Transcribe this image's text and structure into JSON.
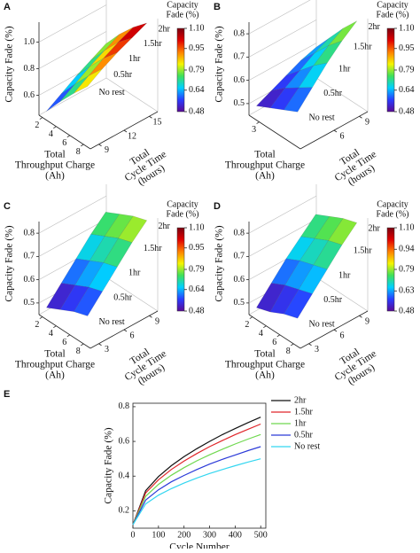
{
  "chart_data": [
    {
      "type": "surface3d",
      "panel": "A",
      "zlabel": "Capacity Fade (%)",
      "xlabel": [
        "Total",
        "Throughput Charge",
        "(Ah)"
      ],
      "ylabel": [
        "Total",
        "Cycle Time",
        "(hours)"
      ],
      "x": [
        2,
        4,
        6,
        8
      ],
      "xlim": [
        1.5,
        9
      ],
      "xticks": [
        2,
        4,
        6,
        8
      ],
      "ylim": [
        8,
        16
      ],
      "yticks": [
        9,
        12,
        15
      ],
      "zlim": [
        0.45,
        1.15
      ],
      "zticks": [
        0.6,
        0.8,
        {
          "value": 1,
          "label": "1.0"
        }
      ],
      "series": [
        {
          "name": "2hr",
          "values": [
            0.74,
            0.88,
            1.0,
            1.1
          ]
        },
        {
          "name": "1.5hr",
          "values": [
            0.68,
            0.82,
            0.95,
            1.05
          ]
        },
        {
          "name": "1hr",
          "values": [
            0.62,
            0.76,
            0.89,
            1.0
          ]
        },
        {
          "name": "0.5hr",
          "values": [
            0.55,
            0.69,
            0.82,
            0.94
          ]
        },
        {
          "name": "No rest",
          "values": [
            0.48,
            0.62,
            0.75,
            0.87
          ]
        }
      ],
      "colorbar_title": [
        "Capacity",
        "Fade (%)"
      ],
      "clim": [
        0.48,
        1.1
      ],
      "cticks": [
        0.48,
        0.64,
        0.79,
        0.95,
        {
          "value": 1.1,
          "label": "1.10"
        }
      ],
      "colormap": [
        "#5a0a94",
        "#2a3cff",
        "#00d0ff",
        "#3fe05a",
        "#f5f500",
        "#ff7f00",
        "#e00000",
        "#7a0010"
      ]
    },
    {
      "type": "surface3d",
      "panel": "B",
      "zlabel": "Capacity Fade (%)",
      "xlabel": [
        "Total",
        "Throughput Charge",
        "(Ah)"
      ],
      "ylabel": [
        "Total",
        "Cycle Time",
        "(hours)"
      ],
      "x": [
        2,
        4,
        6,
        8
      ],
      "xlim": [
        1.5,
        9
      ],
      "xticks": [
        3
      ],
      "ylim": [
        2,
        10
      ],
      "yticks": [
        6,
        9
      ],
      "zlim": [
        0.45,
        0.85
      ],
      "zticks": [
        0.5,
        0.6,
        0.7,
        0.8
      ],
      "series": [
        {
          "name": "2hr",
          "values": [
            0.6,
            0.68,
            0.76,
            0.83
          ]
        },
        {
          "name": "1.5hr",
          "values": [
            0.58,
            0.65,
            0.72,
            0.78
          ]
        },
        {
          "name": "1hr",
          "values": [
            0.55,
            0.61,
            0.67,
            0.72
          ]
        },
        {
          "name": "0.5hr",
          "values": [
            0.52,
            0.57,
            0.61,
            0.65
          ]
        },
        {
          "name": "No rest",
          "values": [
            0.49,
            0.52,
            0.55,
            0.58
          ]
        }
      ],
      "colorbar_title": [
        "Capacity",
        "Fade (%)"
      ],
      "clim": [
        0.48,
        1.1
      ],
      "cticks": [
        0.48,
        0.64,
        0.79,
        0.95,
        {
          "value": 1.1,
          "label": "1.10"
        }
      ],
      "colormap": [
        "#5a0a94",
        "#2a3cff",
        "#00d0ff",
        "#3fe05a",
        "#f5f500",
        "#ff7f00",
        "#e00000",
        "#7a0010"
      ]
    },
    {
      "type": "surface3d",
      "panel": "C",
      "zlabel": "Capacity Fade (%)",
      "xlabel": [
        "Total",
        "Throughput Charge",
        "(Ah)"
      ],
      "ylabel": [
        "Total",
        "Cycle Time",
        "(hours)"
      ],
      "x": [
        2,
        4,
        6,
        8
      ],
      "xlim": [
        1.5,
        9
      ],
      "xticks": [
        2,
        4,
        6,
        8
      ],
      "ylim": [
        2,
        10
      ],
      "yticks": [
        3,
        6,
        9
      ],
      "zlim": [
        0.45,
        0.85
      ],
      "zticks": [
        0.5,
        0.6,
        0.7,
        0.8
      ],
      "series": [
        {
          "name": "2hr",
          "values": [
            0.75,
            0.78,
            0.81,
            0.83
          ]
        },
        {
          "name": "1.5hr",
          "values": [
            0.69,
            0.72,
            0.75,
            0.77
          ]
        },
        {
          "name": "1hr",
          "values": [
            0.62,
            0.65,
            0.68,
            0.7
          ]
        },
        {
          "name": "0.5hr",
          "values": [
            0.55,
            0.58,
            0.61,
            0.63
          ]
        },
        {
          "name": "No rest",
          "values": [
            0.48,
            0.51,
            0.54,
            0.56
          ]
        }
      ],
      "colorbar_title": [
        "Capacity",
        "Fade (%)"
      ],
      "clim": [
        0.48,
        1.1
      ],
      "cticks": [
        0.48,
        0.64,
        0.79,
        0.95,
        {
          "value": 1.1,
          "label": "1.10"
        }
      ],
      "colormap": [
        "#5a0a94",
        "#2a3cff",
        "#00d0ff",
        "#3fe05a",
        "#f5f500",
        "#ff7f00",
        "#e00000",
        "#7a0010"
      ]
    },
    {
      "type": "surface3d",
      "panel": "D",
      "zlabel": "Capacity Fade (%)",
      "xlabel": [
        "Total",
        "Throughput Charge",
        "(Ah)"
      ],
      "ylabel": [
        "Total",
        "Cycle Time",
        "(hours)"
      ],
      "x": [
        2,
        4,
        6,
        8
      ],
      "xlim": [
        1.5,
        9
      ],
      "xticks": [
        2,
        4,
        6,
        8
      ],
      "ylim": [
        2,
        10
      ],
      "yticks": [
        3,
        6,
        9
      ],
      "zlim": [
        0.45,
        0.85
      ],
      "zticks": [
        0.5,
        0.6,
        0.7,
        0.8
      ],
      "series": [
        {
          "name": "2hr",
          "values": [
            0.74,
            0.77,
            0.8,
            0.82
          ]
        },
        {
          "name": "1.5hr",
          "values": [
            0.68,
            0.71,
            0.74,
            0.76
          ]
        },
        {
          "name": "1hr",
          "values": [
            0.62,
            0.65,
            0.67,
            0.69
          ]
        },
        {
          "name": "0.5hr",
          "values": [
            0.55,
            0.58,
            0.6,
            0.62
          ]
        },
        {
          "name": "No rest",
          "values": [
            0.48,
            0.5,
            0.53,
            0.55
          ]
        }
      ],
      "colorbar_title": [
        "Capacity",
        "Fade (%)"
      ],
      "clim": [
        0.48,
        1.1
      ],
      "cticks": [
        0.48,
        0.63,
        0.79,
        0.94,
        {
          "value": 1.1,
          "label": "1.10"
        }
      ],
      "colormap": [
        "#5a0a94",
        "#2a3cff",
        "#00d0ff",
        "#3fe05a",
        "#f5f500",
        "#ff7f00",
        "#e00000",
        "#7a0010"
      ]
    },
    {
      "type": "line",
      "panel": "E",
      "xlabel": "Cycle Number",
      "ylabel": "Capacity Fade (%)",
      "x": [
        0,
        50,
        100,
        150,
        200,
        250,
        300,
        350,
        400,
        450,
        500
      ],
      "xlim": [
        0,
        520
      ],
      "xticks": [
        0,
        100,
        200,
        300,
        400,
        500
      ],
      "ylim": [
        0.1,
        0.82
      ],
      "yticks": [
        0.2,
        0.4,
        0.6,
        0.8
      ],
      "series": [
        {
          "name": "2hr",
          "color": "#111111",
          "values": [
            0.12,
            0.316,
            0.397,
            0.46,
            0.512,
            0.558,
            0.6,
            0.639,
            0.674,
            0.708,
            0.74
          ]
        },
        {
          "name": "1.5hr",
          "color": "#e0262a",
          "values": [
            0.12,
            0.303,
            0.379,
            0.438,
            0.487,
            0.53,
            0.57,
            0.605,
            0.639,
            0.67,
            0.7
          ]
        },
        {
          "name": "1hr",
          "color": "#6fd84f",
          "values": [
            0.12,
            0.284,
            0.352,
            0.405,
            0.449,
            0.488,
            0.523,
            0.555,
            0.585,
            0.613,
            0.64
          ]
        },
        {
          "name": "0.5hr",
          "color": "#2b3ad8",
          "values": [
            0.12,
            0.262,
            0.321,
            0.367,
            0.404,
            0.438,
            0.469,
            0.497,
            0.522,
            0.547,
            0.57
          ]
        },
        {
          "name": "No rest",
          "color": "#33d6f0",
          "values": [
            0.12,
            0.24,
            0.29,
            0.328,
            0.36,
            0.389,
            0.415,
            0.438,
            0.46,
            0.481,
            0.5
          ]
        }
      ]
    }
  ]
}
